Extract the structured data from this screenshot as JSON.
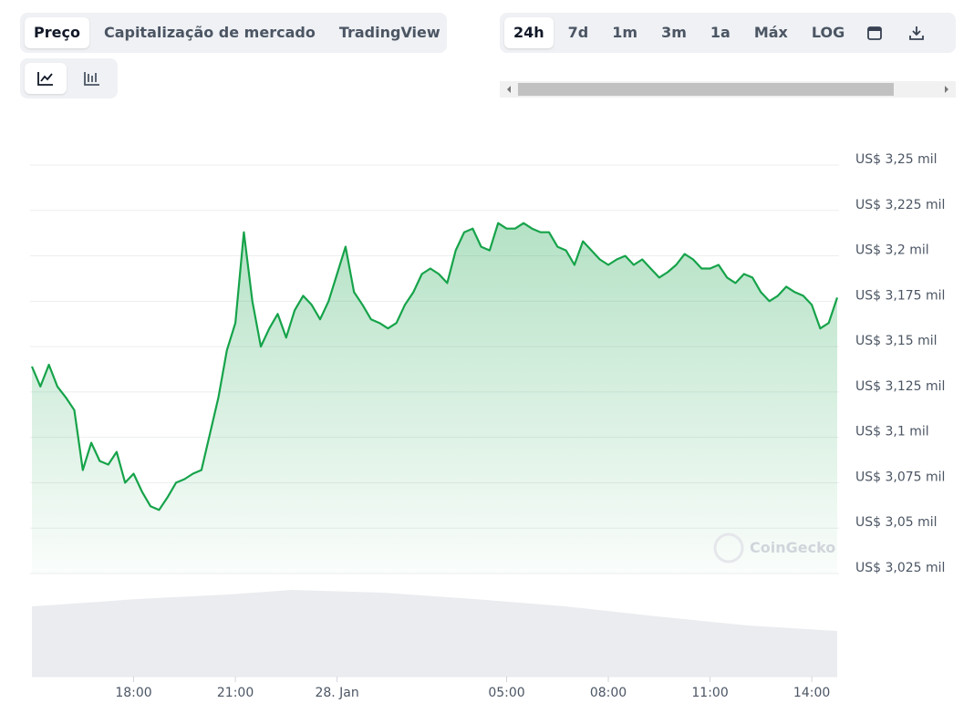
{
  "ui": {
    "view_tabs": [
      "Preço",
      "Capitalização de mercado",
      "TradingView"
    ],
    "ranges": [
      "24h",
      "7d",
      "1m",
      "3m",
      "1a",
      "Máx",
      "LOG"
    ],
    "watermark": "CoinGecko"
  },
  "chart_data": {
    "type": "line",
    "color": "#16a34a",
    "grid": true,
    "x": [
      15,
      15.25,
      15.5,
      15.75,
      16,
      16.25,
      16.5,
      16.75,
      17,
      17.25,
      17.5,
      17.75,
      18,
      18.25,
      18.5,
      18.75,
      19,
      19.25,
      19.5,
      19.75,
      20,
      20.25,
      20.5,
      20.75,
      21,
      21.25,
      21.5,
      21.75,
      22,
      22.25,
      22.5,
      22.75,
      23,
      23.25,
      23.5,
      23.75,
      24,
      24.25,
      24.5,
      24.75,
      25,
      25.25,
      25.5,
      25.75,
      26,
      26.25,
      26.5,
      26.75,
      27,
      27.25,
      27.5,
      27.75,
      28,
      28.25,
      28.5,
      28.75,
      29,
      29.25,
      29.5,
      29.75,
      30,
      30.25,
      30.5,
      30.75,
      31,
      31.25,
      31.5,
      31.75,
      32,
      32.25,
      32.5,
      32.75,
      33,
      33.25,
      33.5,
      33.75,
      34,
      34.25,
      34.5,
      34.75,
      35,
      35.25,
      35.5,
      35.75,
      36,
      36.25,
      36.5,
      36.75,
      37,
      37.25,
      37.5,
      37.75,
      38,
      38.25,
      38.5,
      38.75
    ],
    "values": [
      3139,
      3128,
      3140,
      3128,
      3122,
      3115,
      3082,
      3097,
      3087,
      3085,
      3092,
      3075,
      3080,
      3070,
      3062,
      3060,
      3067,
      3075,
      3077,
      3080,
      3082,
      3102,
      3122,
      3148,
      3163,
      3213,
      3175,
      3150,
      3160,
      3168,
      3155,
      3170,
      3178,
      3173,
      3165,
      3175,
      3190,
      3205,
      3180,
      3173,
      3165,
      3163,
      3160,
      3163,
      3173,
      3180,
      3190,
      3193,
      3190,
      3185,
      3203,
      3213,
      3215,
      3205,
      3203,
      3218,
      3215,
      3215,
      3218,
      3215,
      3213,
      3213,
      3205,
      3203,
      3195,
      3208,
      3203,
      3198,
      3195,
      3198,
      3200,
      3195,
      3198,
      3193,
      3188,
      3191,
      3195,
      3201,
      3198,
      3193,
      3193,
      3195,
      3188,
      3185,
      3190,
      3188,
      3180,
      3175,
      3178,
      3183,
      3180,
      3178,
      3173,
      3160,
      3163,
      3177
    ],
    "xlim": [
      15,
      38.75
    ],
    "xticks": [
      {
        "value": 18,
        "label": "18:00"
      },
      {
        "value": 21,
        "label": "21:00"
      },
      {
        "value": 24,
        "label": "28. Jan"
      },
      {
        "value": 29,
        "label": "05:00"
      },
      {
        "value": 32,
        "label": "08:00"
      },
      {
        "value": 35,
        "label": "11:00"
      },
      {
        "value": 38,
        "label": "14:00"
      }
    ],
    "ylim": [
      3025,
      3250
    ],
    "yticks": [
      {
        "value": 3250,
        "label": "US$ 3,25 mil"
      },
      {
        "value": 3225,
        "label": "US$ 3,225 mil"
      },
      {
        "value": 3200,
        "label": "US$ 3,2 mil"
      },
      {
        "value": 3175,
        "label": "US$ 3,175 mil"
      },
      {
        "value": 3150,
        "label": "US$ 3,15 mil"
      },
      {
        "value": 3125,
        "label": "US$ 3,125 mil"
      },
      {
        "value": 3100,
        "label": "US$ 3,1 mil"
      },
      {
        "value": 3075,
        "label": "US$ 3,075 mil"
      },
      {
        "value": 3050,
        "label": "US$ 3,05 mil"
      },
      {
        "value": 3025,
        "label": "US$ 3,025 mil"
      }
    ]
  }
}
